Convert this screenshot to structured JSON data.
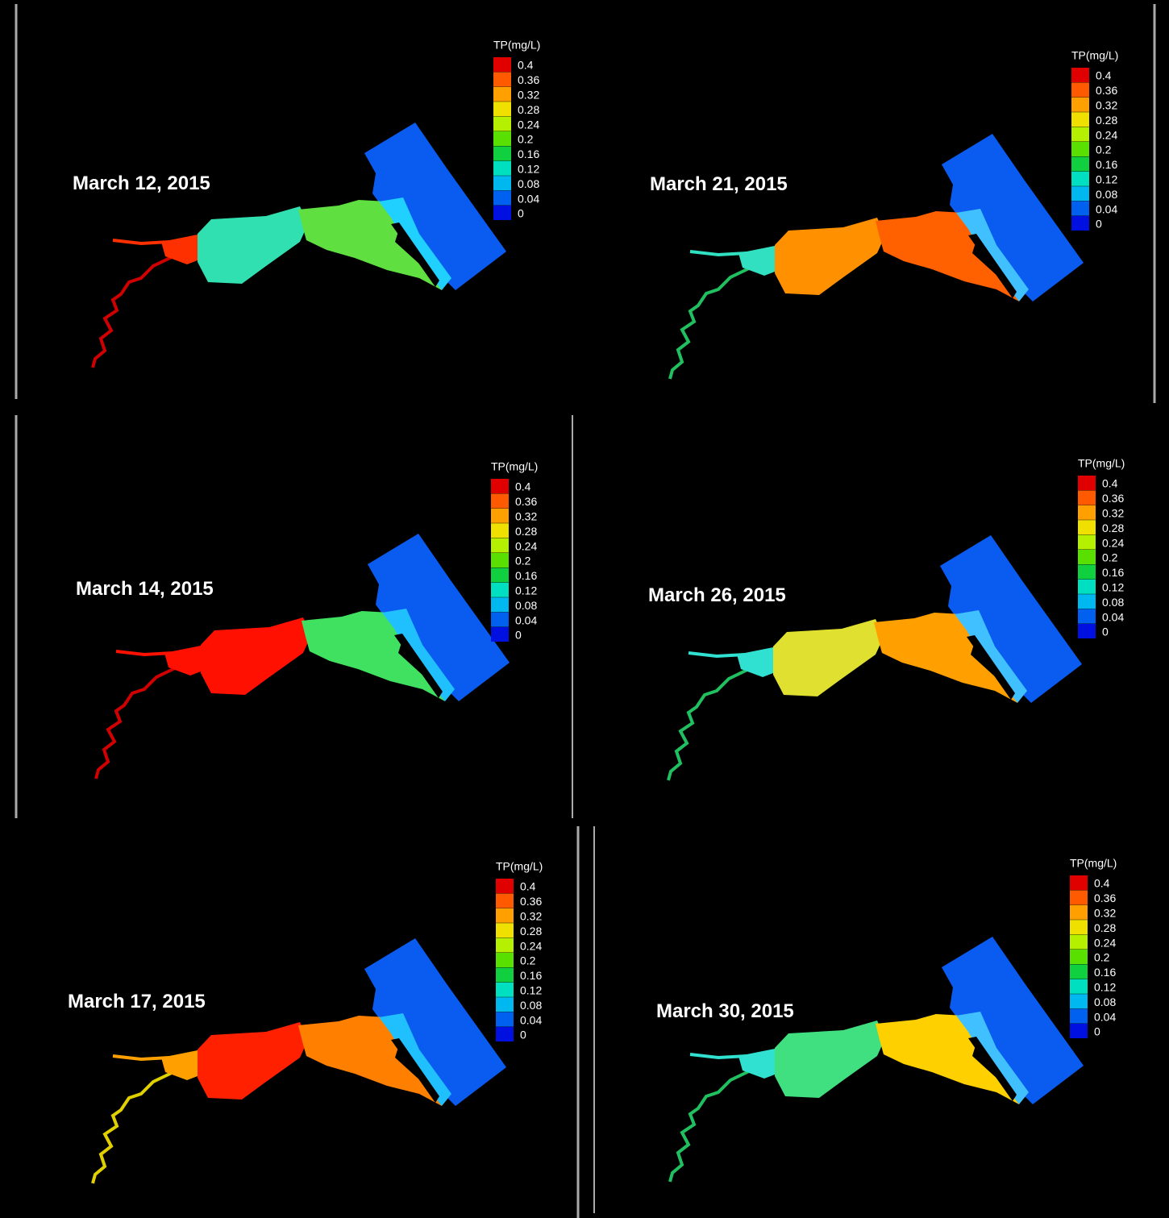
{
  "panels": [
    {
      "date": "March 12, 2015",
      "legend": {
        "title": "TP(mg/L)",
        "labels": [
          "0.4",
          "0.36",
          "0.32",
          "0.28",
          "0.24",
          "0.2",
          "0.16",
          "0.12",
          "0.08",
          "0.04",
          "0"
        ]
      }
    },
    {
      "date": "March 21, 2015",
      "legend": {
        "title": "TP(mg/L)",
        "labels": [
          "0.4",
          "0.36",
          "0.32",
          "0.28",
          "0.24",
          "0.2",
          "0.16",
          "0.12",
          "0.08",
          "0.04",
          "0"
        ]
      }
    },
    {
      "date": "March 14, 2015",
      "legend": {
        "title": "TP(mg/L)",
        "labels": [
          "0.4",
          "0.36",
          "0.32",
          "0.28",
          "0.24",
          "0.2",
          "0.16",
          "0.12",
          "0.08",
          "0.04",
          "0"
        ]
      }
    },
    {
      "date": "March 26, 2015",
      "legend": {
        "title": "TP(mg/L)",
        "labels": [
          "0.4",
          "0.36",
          "0.32",
          "0.28",
          "0.24",
          "0.2",
          "0.16",
          "0.12",
          "0.08",
          "0.04",
          "0"
        ]
      }
    },
    {
      "date": "March 17, 2015",
      "legend": {
        "title": "TP(mg/L)",
        "labels": [
          "0.4",
          "0.36",
          "0.32",
          "0.28",
          "0.24",
          "0.2",
          "0.16",
          "0.12",
          "0.08",
          "0.04",
          "0"
        ]
      }
    },
    {
      "date": "March 30, 2015",
      "legend": {
        "title": "TP(mg/L)",
        "labels": [
          "0.4",
          "0.36",
          "0.32",
          "0.28",
          "0.24",
          "0.2",
          "0.16",
          "0.12",
          "0.08",
          "0.04",
          "0"
        ]
      }
    }
  ]
}
